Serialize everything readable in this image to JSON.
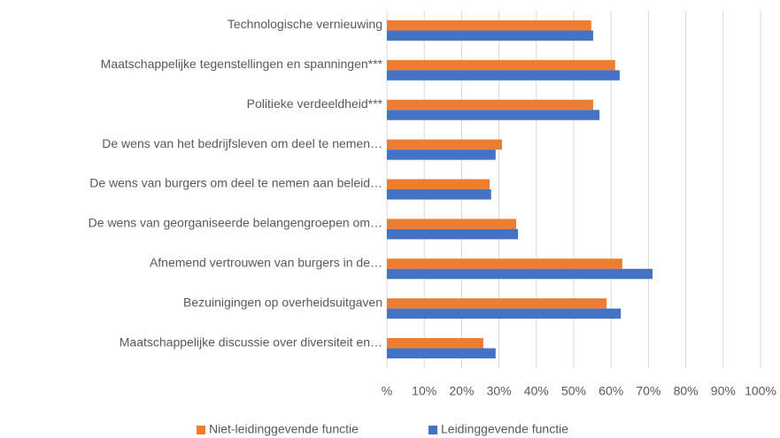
{
  "chart_data": {
    "type": "hbar",
    "categories": [
      "Technologische vernieuwing",
      "Maatschappelijke tegenstellingen en spanningen***",
      "Politieke verdeeldheid***",
      "De wens van het bedrijfsleven om deel te nemen…",
      "De wens van burgers om deel te nemen aan beleid…",
      "De wens van georganiseerde belangengroepen om…",
      "Afnemend vertrouwen van burgers in de…",
      "Bezuinigingen op overheidsuitgaven",
      "Maatschappelijke discussie over diversiteit en…"
    ],
    "series": [
      {
        "name": "Niet-leidinggevende functie",
        "color": "#ed7d31",
        "values": [
          54.7,
          61.1,
          55.2,
          30.8,
          27.5,
          34.6,
          63.0,
          58.8,
          25.8
        ]
      },
      {
        "name": "Leidinggevende functie",
        "color": "#4472c4",
        "values": [
          55.2,
          62.3,
          56.9,
          29.1,
          27.9,
          35.1,
          71.1,
          62.6,
          29.1
        ]
      }
    ],
    "xlim": [
      0,
      100
    ],
    "xticks": [
      {
        "value": 0,
        "label": "%"
      },
      {
        "value": 10,
        "label": "10%"
      },
      {
        "value": 20,
        "label": "20%"
      },
      {
        "value": 30,
        "label": "30%"
      },
      {
        "value": 40,
        "label": "40%"
      },
      {
        "value": 50,
        "label": "50%"
      },
      {
        "value": 60,
        "label": "60%"
      },
      {
        "value": 70,
        "label": "70%"
      },
      {
        "value": 80,
        "label": "80%"
      },
      {
        "value": 90,
        "label": "90%"
      },
      {
        "value": 100,
        "label": "100%"
      }
    ],
    "grid": true,
    "legend": "bottom"
  }
}
